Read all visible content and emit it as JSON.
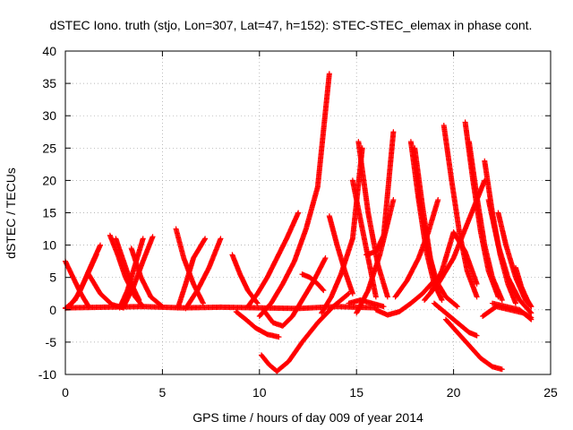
{
  "chart_data": {
    "type": "scatter",
    "title": "dSTEC Iono. truth (stjo, Lon=307, Lat=47, h=152): STEC-STEC_elemax in phase cont.",
    "xlabel": "GPS time / hours of day 009 of year 2014",
    "ylabel": "dSTEC  / TECUs",
    "xlim": [
      0,
      25
    ],
    "ylim": [
      -10,
      40
    ],
    "xticks": [
      0,
      5,
      10,
      15,
      20,
      25
    ],
    "yticks": [
      -10,
      -5,
      0,
      5,
      10,
      15,
      20,
      25,
      30,
      35,
      40
    ],
    "grid": true,
    "marker": "+",
    "color": "#ff0000",
    "series": [
      {
        "x": [
          0.0,
          0.4,
          0.8,
          1.2
        ],
        "y": [
          7.5,
          5.0,
          2.5,
          0.5
        ]
      },
      {
        "x": [
          0.0,
          0.5,
          1.0,
          1.6
        ],
        "y": [
          0.2,
          1.5,
          4.5,
          8.5
        ]
      },
      {
        "x": [
          0.2,
          0.7,
          1.2,
          1.8
        ],
        "y": [
          0.5,
          2.5,
          6.0,
          10.0
        ]
      },
      {
        "x": [
          1.2,
          1.8,
          2.4,
          3.0
        ],
        "y": [
          5.5,
          2.5,
          0.8,
          0.3
        ]
      },
      {
        "x": [
          2.3,
          2.7,
          3.1,
          3.6,
          4.0
        ],
        "y": [
          11.5,
          8.5,
          5.0,
          2.0,
          0.5
        ]
      },
      {
        "x": [
          2.6,
          3.0,
          3.4,
          3.8
        ],
        "y": [
          11.0,
          7.5,
          4.0,
          1.5
        ]
      },
      {
        "x": [
          2.8,
          3.2,
          3.6,
          4.0
        ],
        "y": [
          0.3,
          3.0,
          7.0,
          11.0
        ]
      },
      {
        "x": [
          3.0,
          3.5,
          4.0,
          4.5
        ],
        "y": [
          0.5,
          3.5,
          7.5,
          11.3
        ]
      },
      {
        "x": [
          3.4,
          3.9,
          4.4,
          5.0
        ],
        "y": [
          9.5,
          5.0,
          2.0,
          0.5
        ]
      },
      {
        "x": [
          5.7,
          6.1,
          6.6,
          7.1
        ],
        "y": [
          12.5,
          8.0,
          4.0,
          1.0
        ]
      },
      {
        "x": [
          5.8,
          6.2,
          6.6,
          7.2
        ],
        "y": [
          0.3,
          4.0,
          8.0,
          11.0
        ]
      },
      {
        "x": [
          6.2,
          6.8,
          7.4,
          8.0
        ],
        "y": [
          0.2,
          3.0,
          6.5,
          11.0
        ]
      },
      {
        "x": [
          8.6,
          9.0,
          9.4,
          9.9
        ],
        "y": [
          8.5,
          5.5,
          3.0,
          1.0
        ]
      },
      {
        "x": [
          8.8,
          9.3,
          9.8,
          10.4,
          11.0
        ],
        "y": [
          -0.3,
          -1.5,
          -2.8,
          -3.8,
          -4.2
        ]
      },
      {
        "x": [
          9.4,
          9.9,
          10.4,
          10.9,
          11.4,
          12.0
        ],
        "y": [
          0.5,
          2.5,
          5.0,
          8.0,
          11.0,
          15.0
        ]
      },
      {
        "x": [
          10.2,
          10.7,
          11.2,
          11.7,
          12.2,
          12.8,
          13.4
        ],
        "y": [
          0.0,
          -2.0,
          -2.5,
          -1.0,
          1.5,
          4.5,
          8.0
        ]
      },
      {
        "x": [
          10.0,
          10.6,
          11.2,
          11.8,
          12.4,
          13.0,
          13.6
        ],
        "y": [
          -1.0,
          1.0,
          4.0,
          7.5,
          12.5,
          19.0,
          36.5
        ]
      },
      {
        "x": [
          10.1,
          10.5,
          10.9,
          11.5,
          12.2,
          13.0,
          13.8,
          14.6
        ],
        "y": [
          -7.0,
          -8.5,
          -9.5,
          -8.0,
          -5.0,
          -2.0,
          0.5,
          2.5
        ]
      },
      {
        "x": [
          12.2,
          12.6,
          13.0,
          13.3
        ],
        "y": [
          5.5,
          5.0,
          4.0,
          3.0
        ]
      },
      {
        "x": [
          13.2,
          13.7,
          14.2,
          14.8,
          15.3
        ],
        "y": [
          -0.5,
          2.0,
          5.5,
          11.0,
          25.0
        ]
      },
      {
        "x": [
          13.6,
          14.0,
          14.4,
          14.8
        ],
        "y": [
          14.5,
          10.0,
          6.0,
          2.5
        ]
      },
      {
        "x": [
          14.8,
          15.2,
          15.6,
          16.0
        ],
        "y": [
          20.0,
          14.0,
          8.0,
          2.0
        ]
      },
      {
        "x": [
          15.0,
          15.6,
          16.2,
          16.9
        ],
        "y": [
          -0.5,
          3.0,
          8.5,
          17.0
        ]
      },
      {
        "x": [
          15.1,
          15.6,
          16.1,
          16.6
        ],
        "y": [
          26.0,
          15.0,
          7.0,
          2.0
        ]
      },
      {
        "x": [
          15.5,
          16.0,
          16.4,
          16.9
        ],
        "y": [
          8.5,
          9.0,
          11.5,
          27.5
        ]
      },
      {
        "x": [
          14.6,
          15.2,
          15.8,
          16.4
        ],
        "y": [
          1.0,
          1.5,
          1.0,
          0.5
        ]
      },
      {
        "x": [
          16.0,
          16.6,
          17.2,
          17.8,
          18.4,
          19.0
        ],
        "y": [
          0.0,
          -0.8,
          -0.3,
          1.0,
          2.5,
          4.5
        ]
      },
      {
        "x": [
          17.0,
          17.6,
          18.2,
          18.7,
          19.2
        ],
        "y": [
          2.0,
          4.5,
          8.0,
          12.0,
          17.0
        ]
      },
      {
        "x": [
          17.8,
          18.2,
          18.6,
          19.0,
          19.4
        ],
        "y": [
          26.0,
          17.0,
          9.0,
          4.0,
          1.5
        ]
      },
      {
        "x": [
          18.0,
          18.4,
          18.8,
          19.2
        ],
        "y": [
          25.0,
          16.0,
          8.0,
          3.5
        ]
      },
      {
        "x": [
          18.2,
          18.6,
          19.0,
          19.6,
          20.2
        ],
        "y": [
          18.0,
          11.0,
          5.0,
          2.0,
          0.5
        ]
      },
      {
        "x": [
          19.5,
          19.9,
          20.3,
          20.7,
          21.2
        ],
        "y": [
          28.5,
          20.0,
          12.0,
          6.0,
          2.0
        ]
      },
      {
        "x": [
          18.5,
          19.2,
          20.0,
          20.8,
          21.6
        ],
        "y": [
          1.5,
          4.0,
          8.0,
          14.0,
          20.0
        ]
      },
      {
        "x": [
          18.8,
          19.4,
          20.0,
          20.6,
          21.2
        ],
        "y": [
          2.5,
          6.0,
          12.0,
          9.0,
          4.0
        ]
      },
      {
        "x": [
          20.6,
          21.0,
          21.4,
          21.8,
          22.3
        ],
        "y": [
          29.0,
          20.0,
          12.0,
          6.0,
          2.0
        ]
      },
      {
        "x": [
          20.8,
          21.2,
          21.6,
          22.0,
          22.5
        ],
        "y": [
          26.0,
          17.5,
          10.0,
          5.0,
          1.5
        ]
      },
      {
        "x": [
          21.6,
          22.0,
          22.4,
          22.8,
          23.2
        ],
        "y": [
          23.0,
          15.0,
          8.5,
          4.0,
          1.0
        ]
      },
      {
        "x": [
          21.8,
          22.3,
          22.8,
          23.4,
          24.0
        ],
        "y": [
          17.0,
          10.0,
          5.0,
          1.5,
          -0.5
        ]
      },
      {
        "x": [
          22.3,
          22.7,
          23.2,
          23.7,
          24.0
        ],
        "y": [
          15.0,
          10.0,
          5.0,
          1.5,
          0.5
        ]
      },
      {
        "x": [
          23.2,
          23.5,
          23.8,
          24.0
        ],
        "y": [
          6.5,
          3.5,
          1.5,
          0.5
        ]
      },
      {
        "x": [
          19.6,
          20.2,
          20.8,
          21.4,
          22.0,
          22.5
        ],
        "y": [
          -1.5,
          -3.5,
          -5.5,
          -7.5,
          -8.8,
          -9.2
        ]
      },
      {
        "x": [
          19.0,
          19.6,
          20.2,
          20.8,
          21.2
        ],
        "y": [
          1.0,
          -0.5,
          -2.0,
          -3.5,
          -4.0
        ]
      },
      {
        "x": [
          21.5,
          22.2,
          22.9,
          23.6,
          24.0
        ],
        "y": [
          -1.0,
          0.5,
          0.0,
          -0.5,
          -1.2
        ]
      },
      {
        "x": [
          22.0,
          22.7,
          23.4,
          24.0
        ],
        "y": [
          1.0,
          0.5,
          0.0,
          -1.5
        ]
      }
    ],
    "baseline": {
      "x": [
        0,
        2,
        4,
        6,
        8,
        10,
        12,
        14,
        16
      ],
      "y": [
        0.3,
        0.4,
        0.5,
        0.3,
        0.4,
        0.3,
        0.2,
        0.5,
        0.3
      ]
    }
  }
}
